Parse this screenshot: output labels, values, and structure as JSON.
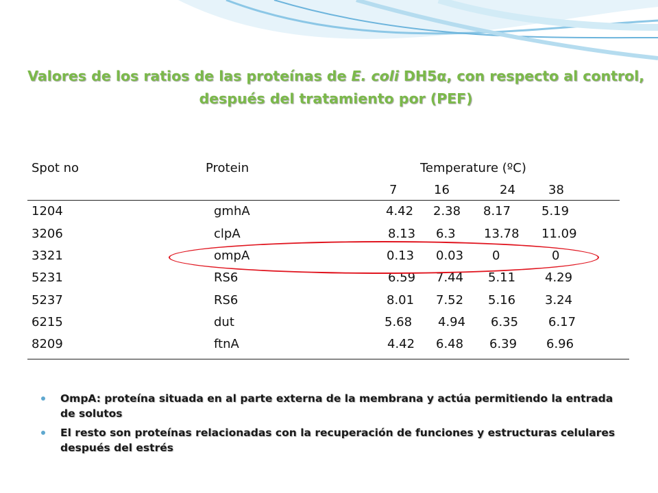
{
  "title": {
    "line1_a": "Valores de los ratios de las proteínas  de ",
    "line1_species": "E. coli",
    "line1_b": " DH5α, con respecto al control,",
    "line2": "después del tratamiento por (PEF)"
  },
  "table": {
    "headers": {
      "spot": "Spot no",
      "protein": "Protein",
      "temperature": "Temperature (ºC)"
    },
    "temperatures": [
      "7",
      "16",
      "24",
      "38"
    ],
    "rows": [
      {
        "spot": "1204",
        "protein": "gmhA",
        "values": [
          "4.42",
          "2.38",
          "8.17",
          "5.19"
        ]
      },
      {
        "spot": "3206",
        "protein": "clpA",
        "values": [
          "8.13",
          "6.3",
          "13.78",
          "11.09"
        ]
      },
      {
        "spot": "3321",
        "protein": "ompA",
        "values": [
          "0.13",
          "0.03",
          "0",
          "0"
        ]
      },
      {
        "spot": "5231",
        "protein": "RS6",
        "values": [
          "6.59",
          "7.44",
          "5.11",
          "4.29"
        ]
      },
      {
        "spot": "5237",
        "protein": "RS6",
        "values": [
          "8.01",
          "7.52",
          "5.16",
          "3.24"
        ]
      },
      {
        "spot": "6215",
        "protein": "dut",
        "values": [
          "5.68",
          "4.94",
          "6.35",
          "6.17"
        ]
      },
      {
        "spot": "8209",
        "protein": "ftnA",
        "values": [
          "4.42",
          "6.48",
          "6.39",
          "6.96"
        ]
      }
    ]
  },
  "bullets": [
    "OmpA: proteína situada en al parte externa de la membrana y actúa permitiendo la entrada de solutos",
    "El resto son proteínas relacionadas con la recuperación de funciones y estructuras celulares después del estrés"
  ],
  "colors": {
    "title": "#7bb94a",
    "highlight": "#e0141e",
    "bullet": "#5fa8cf",
    "wave": "#6cb4dc"
  },
  "highlighted_row": "3321"
}
